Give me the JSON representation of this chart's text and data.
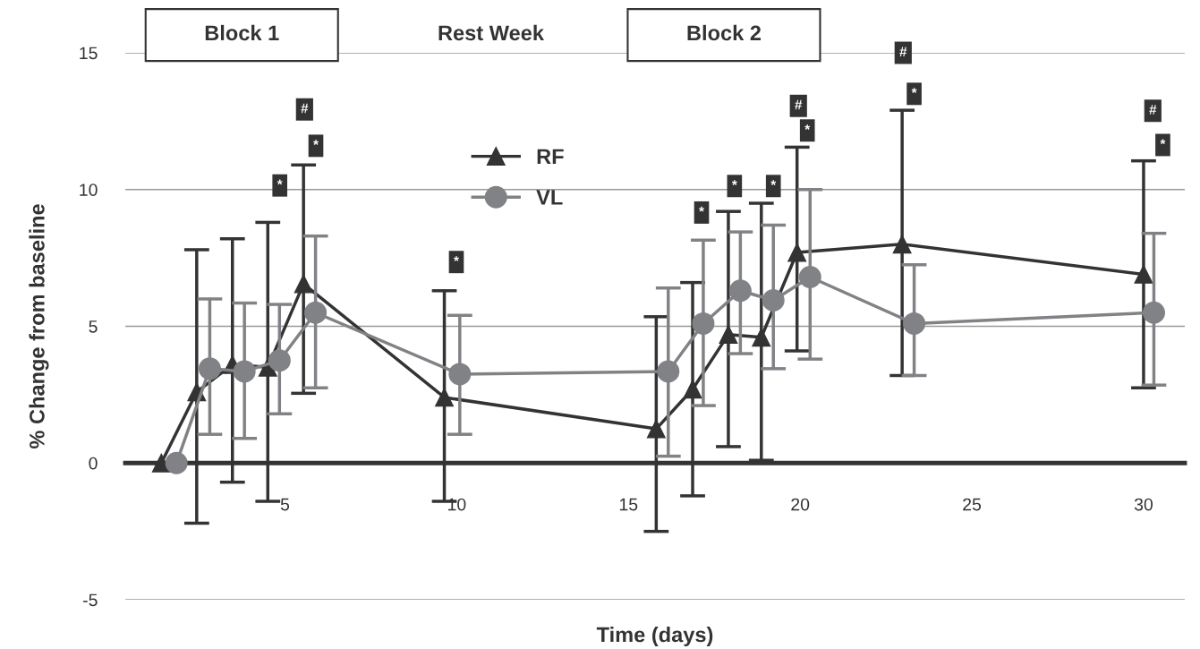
{
  "chart_data": {
    "type": "line",
    "xlabel": "Time (days)",
    "ylabel": "% Change from baseline",
    "xlim": [
      0.35,
      31.2
    ],
    "xticks": [
      5,
      10,
      15,
      20,
      25,
      30
    ],
    "ylim": [
      -5,
      15
    ],
    "yticks": [
      -5,
      0,
      5,
      10,
      15
    ],
    "grid": "y",
    "legend": "top",
    "series": [
      {
        "name": "RF",
        "color": "#333333",
        "marker": "triangle",
        "x": [
          1.4,
          2.43,
          3.47,
          4.5,
          5.54,
          9.64,
          15.81,
          16.87,
          17.91,
          18.87,
          19.91,
          22.97,
          30.0
        ],
        "values": [
          0,
          2.6,
          3.6,
          3.5,
          6.55,
          2.4,
          1.25,
          2.7,
          4.7,
          4.6,
          7.7,
          8.0,
          6.9
        ],
        "errors": [
          null,
          [
            -2.2,
            7.8
          ],
          [
            -0.7,
            8.2
          ],
          [
            -1.4,
            8.8
          ],
          [
            2.55,
            10.9
          ],
          [
            -1.4,
            6.3
          ],
          [
            -2.5,
            5.35
          ],
          [
            -1.2,
            6.6
          ],
          [
            0.6,
            9.2
          ],
          [
            0.1,
            9.5
          ],
          [
            4.1,
            11.55
          ],
          [
            3.2,
            12.9
          ],
          [
            2.75,
            11.05
          ]
        ]
      },
      {
        "name": "VL",
        "color": "#808285",
        "marker": "circle",
        "x": [
          1.84,
          2.81,
          3.82,
          4.84,
          5.89,
          10.09,
          16.16,
          17.18,
          18.26,
          19.22,
          20.29,
          23.32,
          30.3
        ],
        "values": [
          0,
          3.45,
          3.35,
          3.75,
          5.5,
          3.25,
          3.35,
          5.1,
          6.3,
          5.95,
          6.8,
          5.1,
          5.5
        ],
        "errors": [
          null,
          [
            1.05,
            6.0
          ],
          [
            0.9,
            5.85
          ],
          [
            1.8,
            5.8
          ],
          [
            2.75,
            8.3
          ],
          [
            1.05,
            5.4
          ],
          [
            0.25,
            6.4
          ],
          [
            2.1,
            8.15
          ],
          [
            4.0,
            8.45
          ],
          [
            3.45,
            8.7
          ],
          [
            3.8,
            10.0
          ],
          [
            3.2,
            7.25
          ],
          [
            2.85,
            8.4
          ]
        ]
      }
    ],
    "annotations": [
      "Block 1",
      "Rest Week",
      "Block 2",
      {
        "text": "*",
        "x": 4.85,
        "y": 10.15
      },
      {
        "text": "#",
        "x": 5.57,
        "y": 12.93
      },
      {
        "text": "*",
        "x": 5.9,
        "y": 11.6
      },
      {
        "text": "*",
        "x": 9.99,
        "y": 7.35
      },
      {
        "text": "*",
        "x": 17.13,
        "y": 9.16
      },
      {
        "text": "*",
        "x": 18.09,
        "y": 10.13
      },
      {
        "text": "*",
        "x": 19.22,
        "y": 10.13
      },
      {
        "text": "#",
        "x": 19.95,
        "y": 13.06
      },
      {
        "text": "*",
        "x": 20.21,
        "y": 12.16
      },
      {
        "text": "#",
        "x": 23.0,
        "y": 15.0
      },
      {
        "text": "*",
        "x": 23.32,
        "y": 13.5
      },
      {
        "text": "#",
        "x": 30.27,
        "y": 12.88
      },
      {
        "text": "*",
        "x": 30.56,
        "y": 11.63
      }
    ]
  }
}
